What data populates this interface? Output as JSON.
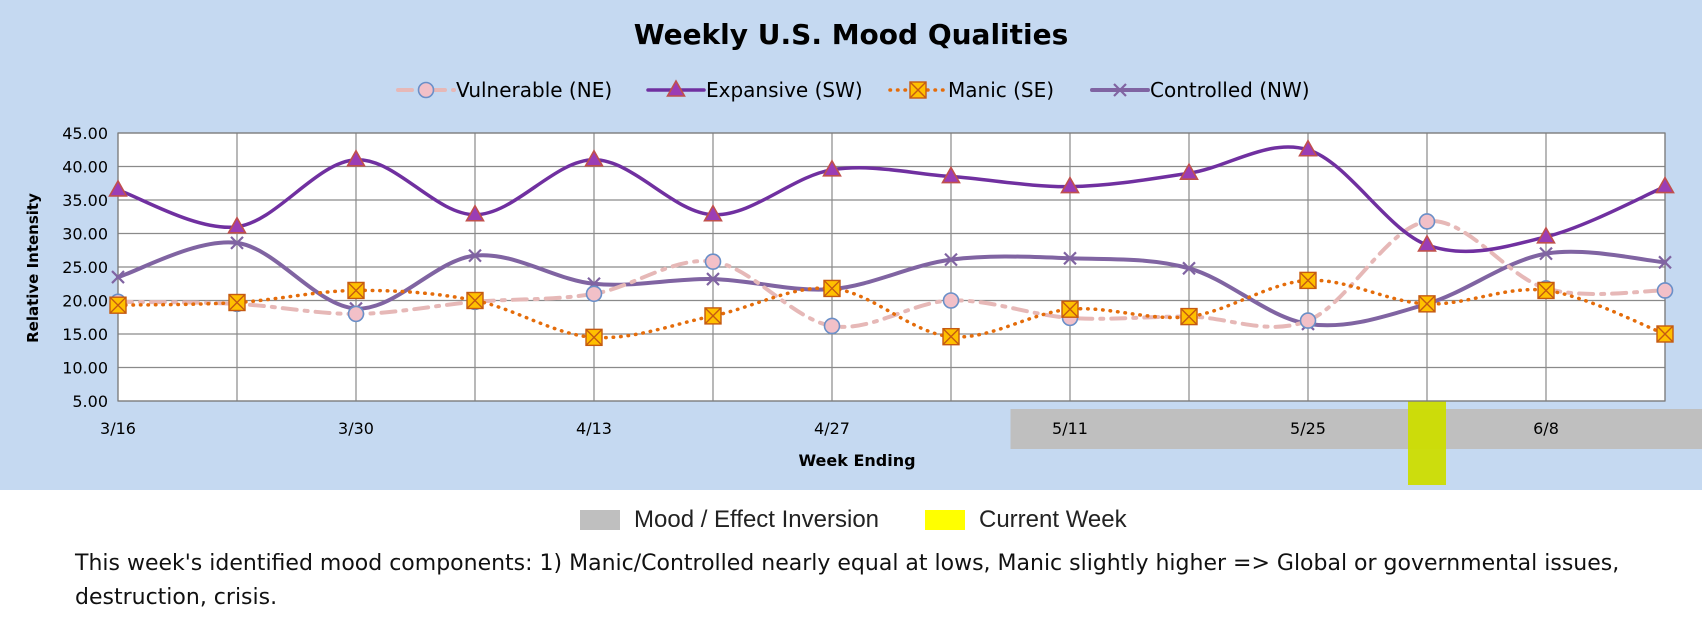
{
  "chart_data": {
    "type": "line",
    "title": "Weekly U.S. Mood Qualities",
    "xlabel": "Week Ending",
    "ylabel": "Relative Intensity",
    "ylim": [
      5,
      45
    ],
    "yticks": [
      "5.00",
      "10.00",
      "15.00",
      "20.00",
      "25.00",
      "30.00",
      "35.00",
      "40.00",
      "45.00"
    ],
    "x_tick_labels": [
      "3/16",
      "",
      "3/30",
      "",
      "4/13",
      "",
      "4/27",
      "",
      "5/11",
      "",
      "5/25",
      "",
      "6/8",
      ""
    ],
    "grid": true,
    "legend_position": "top",
    "background": "#c5d9f1",
    "series": [
      {
        "name": "Vulnerable (NE)",
        "color": "#e6b8b7",
        "style": "dash-dot",
        "marker": "circle",
        "values": [
          19.8,
          19.5,
          18.0,
          19.8,
          21.0,
          25.8,
          16.2,
          20.0,
          17.4,
          17.6,
          17.0,
          31.8,
          21.8,
          21.5
        ]
      },
      {
        "name": "Expansive (SW)",
        "color": "#7030a0",
        "style": "solid",
        "marker": "triangle",
        "values": [
          36.5,
          31.0,
          41.0,
          32.8,
          41.0,
          32.8,
          39.5,
          38.5,
          37.0,
          39.0,
          42.5,
          28.3,
          29.5,
          37.0
        ]
      },
      {
        "name": "Manic (SE)",
        "color": "#e46c0a",
        "style": "dotted",
        "marker": "square-x",
        "values": [
          19.3,
          19.7,
          21.5,
          20.0,
          14.5,
          17.7,
          21.8,
          14.6,
          18.7,
          17.6,
          23.0,
          19.5,
          21.5,
          15.0
        ]
      },
      {
        "name": "Controlled (NW)",
        "color": "#8064a2",
        "style": "solid",
        "marker": "x",
        "values": [
          23.5,
          28.6,
          18.8,
          26.7,
          22.5,
          23.2,
          21.7,
          26.1,
          26.3,
          24.8,
          16.5,
          19.5,
          27.0,
          25.7
        ]
      }
    ],
    "bands": [
      {
        "label": "Mood / Effect Inversion",
        "color": "#bfbfbf",
        "from_index": 7.5,
        "to_index": 14
      },
      {
        "label": "Current Week",
        "color": "#ccdd00",
        "at_index": 11
      }
    ]
  },
  "footer_legend": {
    "inversion_label": "Mood / Effect Inversion",
    "current_label": "Current Week"
  },
  "caption": "This week's identified mood components: 1) Manic/Controlled nearly equal at lows, Manic slightly higher => Global or governmental issues, destruction, crisis."
}
